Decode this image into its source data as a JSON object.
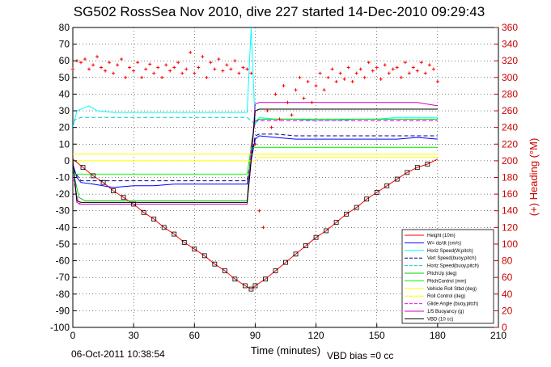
{
  "chart_data": {
    "type": "line",
    "title": "SG502 RossSea Nov 2010, dive 227 started 14-Dec-2010 09:29:43",
    "xlabel": "Time (minutes)",
    "ylabel": "",
    "y2label": "(+) Heading (°M)",
    "xlim": [
      0,
      210
    ],
    "ylim": [
      -100,
      80
    ],
    "y2lim": [
      0,
      360
    ],
    "xticks": [
      "0",
      "30",
      "60",
      "90",
      "120",
      "150",
      "180",
      "210"
    ],
    "yticks": [
      "80",
      "70",
      "60",
      "50",
      "40",
      "30",
      "20",
      "10",
      "0",
      "-10",
      "-20",
      "-30",
      "-40",
      "-50",
      "-60",
      "-70",
      "-80",
      "-90",
      "-100"
    ],
    "y2ticks": [
      "360",
      "340",
      "320",
      "300",
      "280",
      "260",
      "240",
      "220",
      "200",
      "180",
      "160",
      "140",
      "120",
      "100",
      "80",
      "60",
      "40",
      "20",
      "0"
    ],
    "grid": true,
    "legend_position": "bottom-right",
    "series": [
      {
        "name": "Height (10m)",
        "color": "#ff0000",
        "x": [
          0,
          5,
          10,
          15,
          20,
          25,
          30,
          35,
          40,
          45,
          50,
          55,
          60,
          65,
          70,
          75,
          80,
          85,
          88,
          90,
          95,
          100,
          105,
          110,
          115,
          120,
          125,
          130,
          135,
          140,
          145,
          150,
          155,
          160,
          165,
          170,
          175,
          180
        ],
        "y": [
          1,
          -4,
          -9,
          -13,
          -18,
          -22,
          -26,
          -31,
          -35,
          -40,
          -44,
          -49,
          -53,
          -57,
          -62,
          -66,
          -71,
          -75,
          -77,
          -75,
          -71,
          -66,
          -61,
          -56,
          -51,
          -46,
          -42,
          -37,
          -32,
          -28,
          -23,
          -19,
          -15,
          -11,
          -7,
          -4,
          -2,
          1
        ]
      },
      {
        "name": "W= dz/dt (cm/s)",
        "color": "#0000ff",
        "x": [
          0,
          2,
          4,
          10,
          20,
          30,
          40,
          50,
          60,
          70,
          80,
          86,
          88,
          90,
          92,
          100,
          110,
          120,
          130,
          140,
          150,
          160,
          170,
          180
        ],
        "y": [
          -2,
          -10,
          -13,
          -14,
          -16,
          -15,
          -15,
          -14,
          -14,
          -14,
          -14,
          -14,
          0,
          13,
          15,
          14,
          13,
          13,
          13,
          13,
          13,
          13,
          14,
          13
        ]
      },
      {
        "name": "Horiz Speed(W,pitch)",
        "color": "#00ffff",
        "x": [
          0,
          2,
          4,
          8,
          12,
          20,
          30,
          40,
          50,
          60,
          70,
          80,
          86,
          88,
          90,
          92,
          100,
          110,
          120,
          130,
          140,
          150,
          160,
          170,
          180
        ],
        "y": [
          20,
          30,
          31,
          33,
          30,
          29,
          29,
          29,
          29,
          29,
          29,
          29,
          29,
          80,
          22,
          26,
          25,
          25,
          24,
          24,
          25,
          25,
          26,
          26,
          26
        ]
      },
      {
        "name": "Vert Speed(buoy,pitch)",
        "color": "#000080",
        "x": [
          0,
          4,
          10,
          20,
          30,
          40,
          50,
          60,
          70,
          80,
          86,
          90,
          92,
          100,
          110,
          120,
          130,
          140,
          150,
          160,
          170,
          180
        ],
        "y": [
          -5,
          -12,
          -12,
          -12,
          -12,
          -12,
          -12,
          -12,
          -12,
          -12,
          -12,
          15,
          16,
          16,
          15,
          15,
          15,
          15,
          15,
          15,
          15,
          15
        ]
      },
      {
        "name": "Horiz Speed(buoy,pitch)",
        "color": "#00cccc",
        "x": [
          0,
          4,
          10,
          20,
          30,
          40,
          50,
          60,
          70,
          80,
          86,
          90,
          92,
          100,
          110,
          120,
          130,
          140,
          150,
          160,
          170,
          180
        ],
        "y": [
          24,
          26,
          26,
          26,
          26,
          26,
          26,
          26,
          26,
          26,
          26,
          22,
          25,
          25,
          25,
          25,
          25,
          25,
          25,
          25,
          25,
          25
        ]
      },
      {
        "name": "PitchUp (deg)",
        "color": "#00cc00",
        "x": [
          0,
          3,
          6,
          10,
          20,
          30,
          40,
          50,
          60,
          70,
          80,
          86,
          88,
          90,
          92,
          100,
          110,
          120,
          130,
          140,
          150,
          160,
          170,
          180
        ],
        "y": [
          -5,
          -22,
          -24,
          -24,
          -24,
          -24,
          -24,
          -24,
          -24,
          -24,
          -24,
          -24,
          10,
          24,
          25,
          25,
          25,
          25,
          25,
          25,
          25,
          25,
          25,
          25
        ]
      },
      {
        "name": "PitchControl (mm)",
        "color": "#00ff00",
        "x": [
          0,
          3,
          6,
          10,
          20,
          30,
          40,
          50,
          60,
          70,
          80,
          86,
          88,
          90,
          92,
          100,
          110,
          120,
          130,
          140,
          150,
          160,
          170,
          180
        ],
        "y": [
          -8,
          -8,
          -8,
          -8,
          -8,
          -8,
          -8,
          -8,
          -8,
          -8,
          -8,
          -8,
          8,
          8,
          8,
          8,
          8,
          8,
          8,
          8,
          8,
          8,
          8,
          8
        ]
      },
      {
        "name": "Vehicle Roll Stbd (deg)",
        "color": "#ffff00",
        "x": [
          0,
          5,
          10,
          20,
          30,
          40,
          50,
          60,
          70,
          80,
          86,
          88,
          90,
          92,
          100,
          110,
          120,
          130,
          140,
          150,
          160,
          170,
          180
        ],
        "y": [
          0,
          0,
          0,
          0,
          0,
          0,
          0,
          0,
          0,
          0,
          0,
          0,
          0,
          2,
          2,
          2,
          2,
          2,
          2,
          2,
          2,
          2,
          2
        ]
      },
      {
        "name": "Roll Control (deg)",
        "color": "#ffff00",
        "x": [
          0,
          5,
          10,
          20,
          30,
          40,
          50,
          60,
          70,
          80,
          86,
          90,
          100,
          110,
          120,
          130,
          140,
          150,
          160,
          170,
          180
        ],
        "y": [
          4,
          4,
          4,
          4,
          4,
          4,
          4,
          4,
          4,
          4,
          4,
          4,
          4,
          4,
          4,
          4,
          4,
          4,
          4,
          4,
          4
        ]
      },
      {
        "name": "Glide Angle (buoy,pitch)",
        "color": "#ff00ff",
        "x": [
          0,
          3,
          6,
          10,
          20,
          30,
          40,
          50,
          60,
          70,
          80,
          86,
          88,
          90,
          92,
          100,
          110,
          120,
          130,
          140,
          150,
          160,
          170,
          180
        ],
        "y": [
          -10,
          -26,
          -26,
          -26,
          -26,
          -26,
          -26,
          -26,
          -26,
          -26,
          -26,
          -26,
          8,
          24,
          24,
          24,
          24,
          24,
          24,
          24,
          24,
          24,
          24,
          24
        ]
      },
      {
        "name": "1/5 Buoyancy (g)",
        "color": "#cc00cc",
        "x": [
          0,
          2,
          4,
          10,
          20,
          30,
          40,
          50,
          60,
          70,
          80,
          86,
          88,
          90,
          92,
          100,
          110,
          120,
          130,
          140,
          150,
          160,
          170,
          180
        ],
        "y": [
          0,
          -25,
          -26,
          -26,
          -26,
          -26,
          -26,
          -26,
          -26,
          -26,
          -26,
          -26,
          0,
          34,
          35,
          35,
          35,
          35,
          35,
          35,
          35,
          35,
          35,
          33
        ]
      },
      {
        "name": "VBD (10 cc)",
        "color": "#000000",
        "x": [
          0,
          2,
          4,
          10,
          20,
          30,
          40,
          50,
          60,
          70,
          80,
          86,
          88,
          90,
          92,
          100,
          110,
          120,
          130,
          140,
          150,
          160,
          170,
          180
        ],
        "y": [
          0,
          -24,
          -25,
          -25,
          -25,
          -25,
          -25,
          -25,
          -25,
          -25,
          -25,
          -25,
          0,
          30,
          31,
          31,
          31,
          31,
          31,
          31,
          31,
          31,
          31,
          31
        ]
      }
    ],
    "heading": {
      "color": "#ff0000",
      "axis": "right",
      "x": [
        0,
        2,
        4,
        6,
        8,
        10,
        12,
        14,
        16,
        18,
        20,
        22,
        24,
        26,
        28,
        30,
        32,
        34,
        36,
        38,
        40,
        42,
        44,
        46,
        48,
        50,
        52,
        54,
        56,
        58,
        60,
        62,
        64,
        66,
        68,
        70,
        72,
        74,
        76,
        78,
        80,
        82,
        84,
        86,
        88,
        90,
        92,
        94,
        96,
        98,
        100,
        102,
        104,
        106,
        108,
        110,
        112,
        114,
        116,
        118,
        120,
        122,
        124,
        126,
        128,
        130,
        132,
        134,
        136,
        138,
        140,
        142,
        144,
        146,
        148,
        150,
        152,
        154,
        156,
        158,
        160,
        162,
        164,
        166,
        168,
        170,
        172,
        174,
        176,
        178,
        180
      ],
      "y": [
        310,
        320,
        318,
        322,
        310,
        315,
        325,
        312,
        308,
        318,
        305,
        315,
        322,
        300,
        312,
        308,
        318,
        300,
        310,
        316,
        305,
        312,
        300,
        315,
        308,
        312,
        318,
        305,
        310,
        330,
        305,
        312,
        325,
        300,
        318,
        310,
        322,
        308,
        315,
        310,
        320,
        305,
        312,
        310,
        305,
        220,
        140,
        120,
        260,
        240,
        280,
        250,
        290,
        270,
        255,
        285,
        300,
        275,
        295,
        270,
        290,
        305,
        285,
        300,
        310,
        295,
        305,
        298,
        312,
        295,
        305,
        310,
        300,
        318,
        308,
        312,
        298,
        315,
        305,
        310,
        312,
        300,
        318,
        305,
        312,
        308,
        318,
        305,
        315,
        310,
        295
      ]
    },
    "annotations": {
      "date": "06-Oct-2011 10:38:54",
      "vbd_bias": "VBD bias =0 cc"
    }
  }
}
